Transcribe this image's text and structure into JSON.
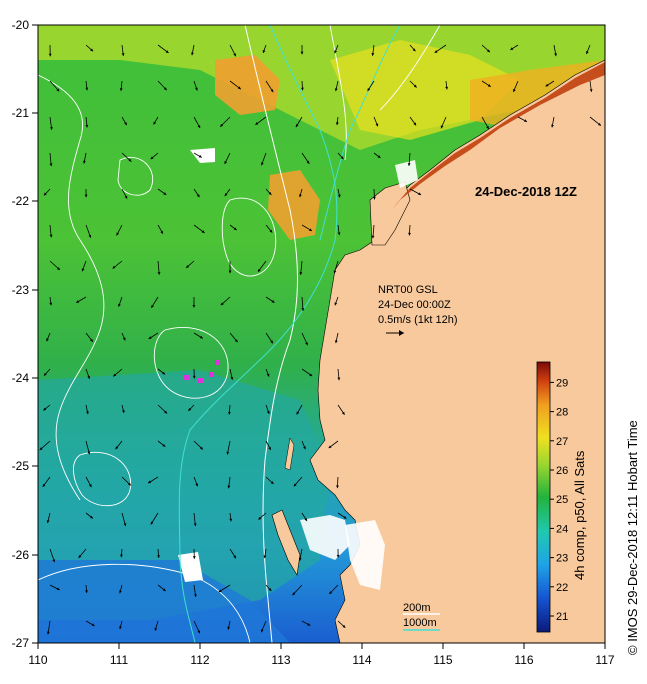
{
  "map": {
    "date_label": "24-Dec-2018 12Z",
    "current_info": [
      "NRT00 GSL",
      "24-Dec 00:00Z",
      "0.5m/s (1kt 12h)"
    ],
    "contours": [
      "200m",
      "1000m"
    ],
    "colorbar_title": "4h comp, p50, All Sats",
    "credit": "© IMOS 29-Dec-2018 12:11 Hobart Time",
    "x_ticks": [
      "110",
      "111",
      "112",
      "113",
      "114",
      "115",
      "116",
      "117"
    ],
    "y_ticks": [
      "-20",
      "-21",
      "-22",
      "-23",
      "-24",
      "-25",
      "-26",
      "-27"
    ],
    "colorbar_ticks": [
      "21",
      "22",
      "23",
      "24",
      "25",
      "26",
      "27",
      "28",
      "29"
    ],
    "colors": {
      "land": "#f8c99c",
      "contour_200": "#ffffff",
      "contour_1000": "#40e0d0",
      "cloud": "#ffffff"
    }
  }
}
